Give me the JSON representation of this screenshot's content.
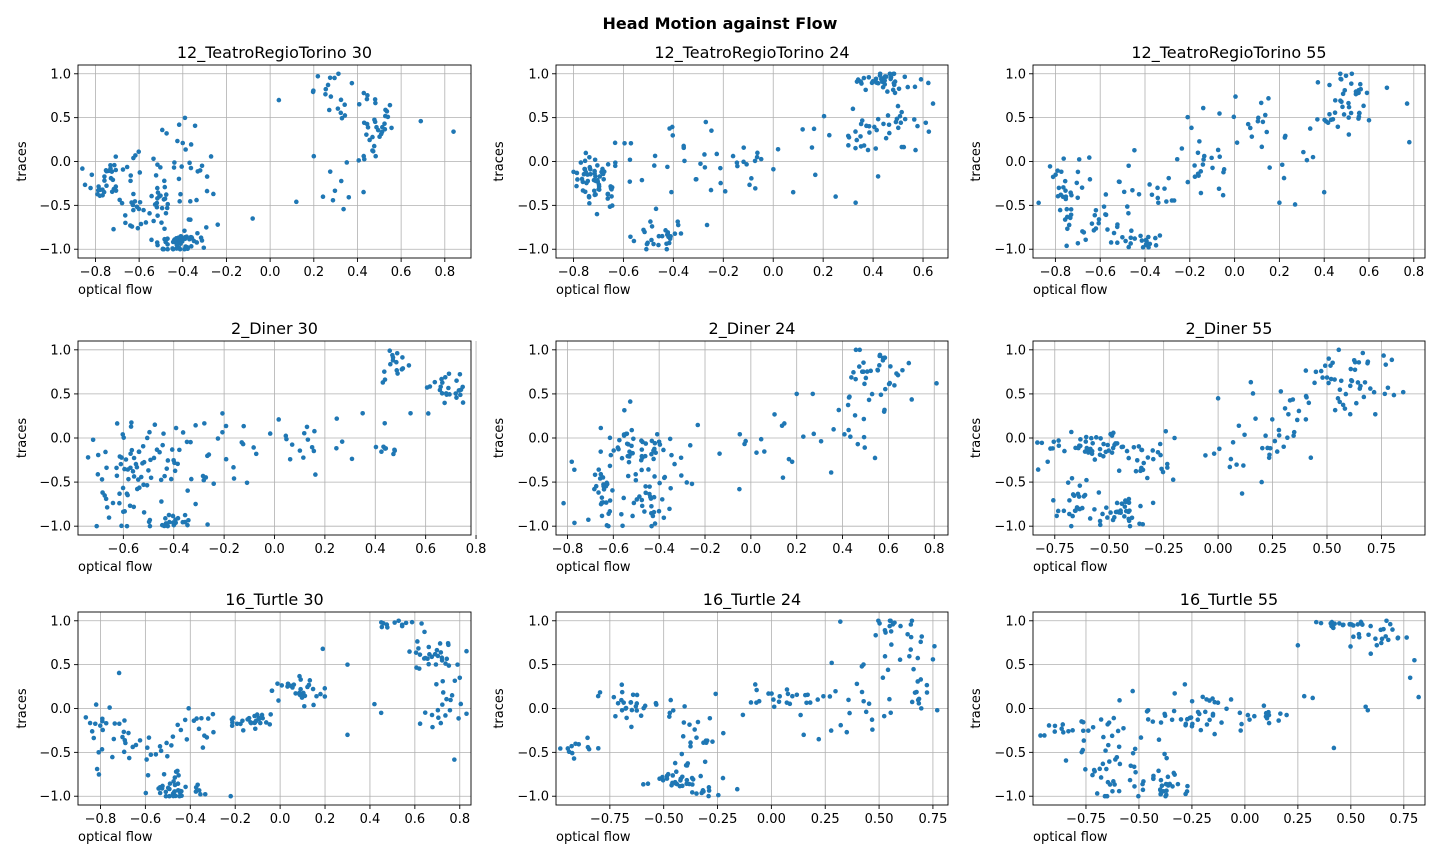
{
  "figure": {
    "suptitle": "Head Motion against Flow"
  },
  "chart_data": [
    {
      "type": "scatter",
      "title": "12_TeatroRegioTorino 30",
      "xlabel": "optical flow",
      "ylabel": "traces",
      "xlim": [
        -0.88,
        0.92
      ],
      "ylim": [
        -1.1,
        1.1
      ],
      "xticks": [
        -0.8,
        -0.6,
        -0.4,
        -0.2,
        0.0,
        0.2,
        0.4,
        0.6,
        0.8
      ],
      "yticks": [
        -1.0,
        -0.5,
        0.0,
        0.5,
        1.0
      ],
      "xtick_labels": [
        "−0.8",
        "−0.6",
        "−0.4",
        "−0.2",
        "0.0",
        "0.2",
        "0.4",
        "0.6",
        "0.8"
      ],
      "ytick_labels": [
        "−1.0",
        "−0.5",
        "0.0",
        "0.5",
        "1.0"
      ],
      "grid": true,
      "color": "#1f77b4",
      "clusters": [
        {
          "cx": -0.72,
          "cy": -0.2,
          "sx": 0.06,
          "sy": 0.2,
          "n": 45
        },
        {
          "cx": -0.5,
          "cy": -0.5,
          "sx": 0.08,
          "sy": 0.3,
          "n": 55
        },
        {
          "cx": -0.42,
          "cy": -0.92,
          "sx": 0.06,
          "sy": 0.06,
          "n": 45
        },
        {
          "cx": -0.4,
          "cy": 0.05,
          "sx": 0.08,
          "sy": 0.2,
          "n": 20
        },
        {
          "cx": 0.32,
          "cy": 0.8,
          "sx": 0.06,
          "sy": 0.12,
          "n": 20
        },
        {
          "cx": 0.5,
          "cy": 0.35,
          "sx": 0.05,
          "sy": 0.2,
          "n": 30
        },
        {
          "cx": 0.33,
          "cy": -0.2,
          "sx": 0.08,
          "sy": 0.15,
          "n": 12
        }
      ],
      "points": [
        [
          0.04,
          0.7
        ],
        [
          0.12,
          -0.46
        ],
        [
          0.69,
          0.46
        ],
        [
          0.84,
          0.34
        ],
        [
          -0.08,
          -0.65
        ],
        [
          -0.24,
          -0.72
        ],
        [
          -0.26,
          -0.37
        ],
        [
          0.2,
          0.06
        ]
      ]
    },
    {
      "type": "scatter",
      "title": "12_TeatroRegioTorino 24",
      "xlabel": "optical flow",
      "ylabel": "traces",
      "xlim": [
        -0.87,
        0.7
      ],
      "ylim": [
        -1.1,
        1.1
      ],
      "xticks": [
        -0.8,
        -0.6,
        -0.4,
        -0.2,
        0.0,
        0.2,
        0.4,
        0.6
      ],
      "yticks": [
        -1.0,
        -0.5,
        0.0,
        0.5,
        1.0
      ],
      "xtick_labels": [
        "−0.8",
        "−0.6",
        "−0.4",
        "−0.2",
        "0.0",
        "0.2",
        "0.4",
        "0.6"
      ],
      "ytick_labels": [
        "−1.0",
        "−0.5",
        "0.0",
        "0.5",
        "1.0"
      ],
      "grid": true,
      "color": "#1f77b4",
      "clusters": [
        {
          "cx": -0.72,
          "cy": -0.2,
          "sx": 0.04,
          "sy": 0.15,
          "n": 60
        },
        {
          "cx": -0.45,
          "cy": -0.85,
          "sx": 0.07,
          "sy": 0.12,
          "n": 30
        },
        {
          "cx": -0.45,
          "cy": 0.0,
          "sx": 0.12,
          "sy": 0.2,
          "n": 20
        },
        {
          "cx": -0.05,
          "cy": 0.0,
          "sx": 0.15,
          "sy": 0.15,
          "n": 25
        },
        {
          "cx": 0.45,
          "cy": 0.92,
          "sx": 0.07,
          "sy": 0.06,
          "n": 40
        },
        {
          "cx": 0.45,
          "cy": 0.45,
          "sx": 0.08,
          "sy": 0.2,
          "n": 30
        },
        {
          "cx": 0.35,
          "cy": 0.3,
          "sx": 0.1,
          "sy": 0.15,
          "n": 15
        }
      ],
      "points": [
        [
          0.64,
          0.66
        ],
        [
          0.25,
          -0.4
        ],
        [
          0.33,
          -0.47
        ],
        [
          0.42,
          -0.17
        ],
        [
          0.08,
          -0.35
        ],
        [
          -0.27,
          0.45
        ],
        [
          0.57,
          0.13
        ]
      ]
    },
    {
      "type": "scatter",
      "title": "12_TeatroRegioTorino 55",
      "xlabel": "optical flow",
      "ylabel": "traces",
      "xlim": [
        -0.9,
        0.85
      ],
      "ylim": [
        -1.1,
        1.1
      ],
      "xticks": [
        -0.8,
        -0.6,
        -0.4,
        -0.2,
        0.0,
        0.2,
        0.4,
        0.6,
        0.8
      ],
      "yticks": [
        -1.0,
        -0.5,
        0.0,
        0.5,
        1.0
      ],
      "xtick_labels": [
        "−0.8",
        "−0.6",
        "−0.4",
        "−0.2",
        "0.0",
        "0.2",
        "0.4",
        "0.6",
        "0.8"
      ],
      "ytick_labels": [
        "−1.0",
        "−0.5",
        "0.0",
        "0.5",
        "1.0"
      ],
      "grid": true,
      "color": "#1f77b4",
      "clusters": [
        {
          "cx": -0.75,
          "cy": -0.4,
          "sx": 0.04,
          "sy": 0.25,
          "n": 35
        },
        {
          "cx": -0.6,
          "cy": -0.75,
          "sx": 0.06,
          "sy": 0.15,
          "n": 20
        },
        {
          "cx": -0.42,
          "cy": -0.9,
          "sx": 0.05,
          "sy": 0.08,
          "n": 20
        },
        {
          "cx": -0.4,
          "cy": -0.3,
          "sx": 0.1,
          "sy": 0.3,
          "n": 20
        },
        {
          "cx": -0.15,
          "cy": -0.05,
          "sx": 0.08,
          "sy": 0.25,
          "n": 25
        },
        {
          "cx": 0.15,
          "cy": 0.35,
          "sx": 0.12,
          "sy": 0.25,
          "n": 25
        },
        {
          "cx": 0.48,
          "cy": 0.7,
          "sx": 0.06,
          "sy": 0.2,
          "n": 40
        }
      ],
      "points": [
        [
          0.78,
          0.22
        ],
        [
          0.77,
          0.66
        ],
        [
          0.68,
          0.84
        ],
        [
          0.6,
          0.47
        ],
        [
          0.35,
          0.05
        ],
        [
          0.2,
          -0.47
        ],
        [
          0.27,
          -0.49
        ],
        [
          0.4,
          -0.35
        ]
      ]
    },
    {
      "type": "scatter",
      "title": "2_Diner 30",
      "xlabel": "optical flow",
      "ylabel": "traces",
      "xlim": [
        -0.78,
        0.78
      ],
      "ylim": [
        -1.1,
        1.1
      ],
      "xticks": [
        -0.6,
        -0.4,
        -0.2,
        0.0,
        0.2,
        0.4,
        0.6,
        0.8
      ],
      "yticks": [
        -1.0,
        -0.5,
        0.0,
        0.5,
        1.0
      ],
      "xtick_labels": [
        "−0.6",
        "−0.4",
        "−0.2",
        "0.0",
        "0.2",
        "0.4",
        "0.6",
        "0.8"
      ],
      "ytick_labels": [
        "−1.0",
        "−0.5",
        "0.0",
        "0.5",
        "1.0"
      ],
      "grid": true,
      "color": "#1f77b4",
      "clusters": [
        {
          "cx": -0.62,
          "cy": -0.55,
          "sx": 0.05,
          "sy": 0.3,
          "n": 35
        },
        {
          "cx": -0.5,
          "cy": -0.35,
          "sx": 0.07,
          "sy": 0.3,
          "n": 50
        },
        {
          "cx": -0.4,
          "cy": -0.93,
          "sx": 0.04,
          "sy": 0.05,
          "n": 20
        },
        {
          "cx": -0.25,
          "cy": -0.2,
          "sx": 0.1,
          "sy": 0.25,
          "n": 25
        },
        {
          "cx": 0.15,
          "cy": -0.05,
          "sx": 0.15,
          "sy": 0.15,
          "n": 20
        },
        {
          "cx": 0.47,
          "cy": 0.85,
          "sx": 0.03,
          "sy": 0.1,
          "n": 15
        },
        {
          "cx": 0.68,
          "cy": 0.55,
          "sx": 0.05,
          "sy": 0.1,
          "n": 25
        },
        {
          "cx": 0.45,
          "cy": -0.12,
          "sx": 0.04,
          "sy": 0.03,
          "n": 8
        }
      ],
      "points": [
        [
          0.54,
          0.28
        ],
        [
          0.35,
          0.28
        ],
        [
          0.43,
          0.63
        ],
        [
          -0.72,
          -0.02
        ],
        [
          -0.74,
          -0.22
        ]
      ]
    },
    {
      "type": "scatter",
      "title": "2_Diner 24",
      "xlabel": "optical flow",
      "ylabel": "traces",
      "xlim": [
        -0.85,
        0.86
      ],
      "ylim": [
        -1.1,
        1.1
      ],
      "xticks": [
        -0.8,
        -0.6,
        -0.4,
        -0.2,
        0.0,
        0.2,
        0.4,
        0.6,
        0.8
      ],
      "yticks": [
        -1.0,
        -0.5,
        0.0,
        0.5,
        1.0
      ],
      "xtick_labels": [
        "−0.8",
        "−0.6",
        "−0.4",
        "−0.2",
        "0.0",
        "0.2",
        "0.4",
        "0.6",
        "0.8"
      ],
      "ytick_labels": [
        "−1.0",
        "−0.5",
        "0.0",
        "0.5",
        "1.0"
      ],
      "grid": true,
      "color": "#1f77b4",
      "clusters": [
        {
          "cx": -0.65,
          "cy": -0.6,
          "sx": 0.06,
          "sy": 0.25,
          "n": 35
        },
        {
          "cx": -0.5,
          "cy": -0.1,
          "sx": 0.08,
          "sy": 0.15,
          "n": 45
        },
        {
          "cx": -0.45,
          "cy": -0.7,
          "sx": 0.05,
          "sy": 0.2,
          "n": 30
        },
        {
          "cx": -0.3,
          "cy": -0.3,
          "sx": 0.07,
          "sy": 0.2,
          "n": 12
        },
        {
          "cx": 0.05,
          "cy": -0.05,
          "sx": 0.12,
          "sy": 0.2,
          "n": 15
        },
        {
          "cx": 0.45,
          "cy": 0.2,
          "sx": 0.05,
          "sy": 0.2,
          "n": 15
        },
        {
          "cx": 0.55,
          "cy": 0.75,
          "sx": 0.08,
          "sy": 0.2,
          "n": 35
        }
      ],
      "points": [
        [
          0.81,
          0.62
        ],
        [
          0.18,
          -0.27
        ],
        [
          0.14,
          -0.45
        ],
        [
          -0.05,
          -0.58
        ],
        [
          0.27,
          0.5
        ],
        [
          0.2,
          0.5
        ],
        [
          -0.77,
          -0.36
        ]
      ]
    },
    {
      "type": "scatter",
      "title": "2_Diner 55",
      "xlabel": "optical flow",
      "ylabel": "traces",
      "xlim": [
        -0.85,
        0.95
      ],
      "ylim": [
        -1.1,
        1.1
      ],
      "xticks": [
        -0.75,
        -0.5,
        -0.25,
        0.0,
        0.25,
        0.5,
        0.75
      ],
      "yticks": [
        -1.0,
        -0.5,
        0.0,
        0.5,
        1.0
      ],
      "xtick_labels": [
        "−0.75",
        "−0.50",
        "−0.25",
        "0.00",
        "0.25",
        "0.50",
        "0.75"
      ],
      "ytick_labels": [
        "−1.0",
        "−0.5",
        "0.0",
        "0.5",
        "1.0"
      ],
      "grid": true,
      "color": "#1f77b4",
      "clusters": [
        {
          "cx": -0.55,
          "cy": -0.1,
          "sx": 0.12,
          "sy": 0.08,
          "n": 50
        },
        {
          "cx": -0.65,
          "cy": -0.7,
          "sx": 0.05,
          "sy": 0.2,
          "n": 25
        },
        {
          "cx": -0.45,
          "cy": -0.85,
          "sx": 0.07,
          "sy": 0.12,
          "n": 35
        },
        {
          "cx": -0.3,
          "cy": -0.4,
          "sx": 0.07,
          "sy": 0.2,
          "n": 20
        },
        {
          "cx": 0.15,
          "cy": -0.1,
          "sx": 0.15,
          "sy": 0.15,
          "n": 20
        },
        {
          "cx": 0.35,
          "cy": 0.25,
          "sx": 0.1,
          "sy": 0.2,
          "n": 25
        },
        {
          "cx": 0.62,
          "cy": 0.65,
          "sx": 0.1,
          "sy": 0.2,
          "n": 45
        }
      ],
      "points": [
        [
          0.85,
          0.52
        ],
        [
          0.2,
          -0.5
        ],
        [
          0.11,
          -0.63
        ],
        [
          0.0,
          0.45
        ],
        [
          -0.77,
          -0.12
        ],
        [
          -0.2,
          0.0
        ]
      ]
    },
    {
      "type": "scatter",
      "title": "16_Turtle 30",
      "xlabel": "optical flow",
      "ylabel": "traces",
      "xlim": [
        -0.9,
        0.85
      ],
      "ylim": [
        -1.1,
        1.1
      ],
      "xticks": [
        -0.8,
        -0.6,
        -0.4,
        -0.2,
        0.0,
        0.2,
        0.4,
        0.6,
        0.8
      ],
      "yticks": [
        -1.0,
        -0.5,
        0.0,
        0.5,
        1.0
      ],
      "xtick_labels": [
        "−0.8",
        "−0.6",
        "−0.4",
        "−0.2",
        "0.0",
        "0.2",
        "0.4",
        "0.6",
        "0.8"
      ],
      "ytick_labels": [
        "−1.0",
        "−0.5",
        "0.0",
        "0.5",
        "1.0"
      ],
      "grid": true,
      "color": "#1f77b4",
      "clusters": [
        {
          "cx": -0.78,
          "cy": -0.3,
          "sx": 0.05,
          "sy": 0.25,
          "n": 25
        },
        {
          "cx": -0.62,
          "cy": -0.5,
          "sx": 0.06,
          "sy": 0.1,
          "n": 15
        },
        {
          "cx": -0.5,
          "cy": -0.85,
          "sx": 0.07,
          "sy": 0.08,
          "n": 20
        },
        {
          "cx": -0.42,
          "cy": -0.95,
          "sx": 0.05,
          "sy": 0.05,
          "n": 20
        },
        {
          "cx": -0.35,
          "cy": -0.2,
          "sx": 0.08,
          "sy": 0.1,
          "n": 20
        },
        {
          "cx": -0.15,
          "cy": -0.15,
          "sx": 0.07,
          "sy": 0.05,
          "n": 25
        },
        {
          "cx": 0.1,
          "cy": 0.2,
          "sx": 0.08,
          "sy": 0.08,
          "n": 30
        },
        {
          "cx": 0.5,
          "cy": 0.97,
          "sx": 0.06,
          "sy": 0.03,
          "n": 12
        },
        {
          "cx": 0.67,
          "cy": 0.65,
          "sx": 0.05,
          "sy": 0.15,
          "n": 30
        },
        {
          "cx": 0.72,
          "cy": 0.0,
          "sx": 0.05,
          "sy": 0.15,
          "n": 20
        }
      ],
      "points": [
        [
          0.8,
          0.35
        ],
        [
          0.79,
          0.5
        ],
        [
          0.42,
          0.05
        ],
        [
          0.45,
          -0.05
        ],
        [
          0.3,
          0.5
        ],
        [
          0.19,
          0.68
        ],
        [
          0.3,
          -0.3
        ],
        [
          -0.22,
          -1.0
        ]
      ]
    },
    {
      "type": "scatter",
      "title": "16_Turtle 24",
      "xlabel": "optical flow",
      "ylabel": "traces",
      "xlim": [
        -1.0,
        0.82
      ],
      "ylim": [
        -1.1,
        1.1
      ],
      "xticks": [
        -0.75,
        -0.5,
        -0.25,
        0.0,
        0.25,
        0.5,
        0.75
      ],
      "yticks": [
        -1.0,
        -0.5,
        0.0,
        0.5,
        1.0
      ],
      "xtick_labels": [
        "−0.75",
        "−0.50",
        "−0.25",
        "0.00",
        "0.25",
        "0.50",
        "0.75"
      ],
      "ytick_labels": [
        "−1.0",
        "−0.5",
        "0.0",
        "0.5",
        "1.0"
      ],
      "grid": true,
      "color": "#1f77b4",
      "clusters": [
        {
          "cx": -0.88,
          "cy": -0.45,
          "sx": 0.05,
          "sy": 0.05,
          "n": 12
        },
        {
          "cx": -0.65,
          "cy": 0.0,
          "sx": 0.08,
          "sy": 0.1,
          "n": 30
        },
        {
          "cx": -0.45,
          "cy": -0.82,
          "sx": 0.08,
          "sy": 0.05,
          "n": 25
        },
        {
          "cx": -0.35,
          "cy": -0.35,
          "sx": 0.07,
          "sy": 0.25,
          "n": 25
        },
        {
          "cx": -0.3,
          "cy": -0.97,
          "sx": 0.05,
          "sy": 0.03,
          "n": 12
        },
        {
          "cx": 0.05,
          "cy": 0.1,
          "sx": 0.12,
          "sy": 0.1,
          "n": 25
        },
        {
          "cx": 0.45,
          "cy": 0.0,
          "sx": 0.1,
          "sy": 0.2,
          "n": 20
        },
        {
          "cx": 0.6,
          "cy": 0.8,
          "sx": 0.08,
          "sy": 0.15,
          "n": 25
        },
        {
          "cx": 0.68,
          "cy": 0.15,
          "sx": 0.04,
          "sy": 0.15,
          "n": 12
        }
      ],
      "points": [
        [
          0.75,
          0.56
        ],
        [
          0.32,
          0.99
        ],
        [
          0.28,
          0.52
        ],
        [
          0.42,
          0.48
        ],
        [
          0.15,
          -0.3
        ],
        [
          0.35,
          -0.27
        ],
        [
          0.22,
          -0.35
        ],
        [
          0.77,
          -0.02
        ]
      ]
    },
    {
      "type": "scatter",
      "title": "16_Turtle 55",
      "xlabel": "optical flow",
      "ylabel": "traces",
      "xlim": [
        -1.0,
        0.85
      ],
      "ylim": [
        -1.1,
        1.1
      ],
      "xticks": [
        -0.75,
        -0.5,
        -0.25,
        0.0,
        0.25,
        0.5,
        0.75
      ],
      "yticks": [
        -1.0,
        -0.5,
        0.0,
        0.5,
        1.0
      ],
      "xtick_labels": [
        "−0.75",
        "−0.50",
        "−0.25",
        "0.00",
        "0.25",
        "0.50",
        "0.75"
      ],
      "ytick_labels": [
        "−1.0",
        "−0.5",
        "0.0",
        "0.5",
        "1.0"
      ],
      "grid": true,
      "color": "#1f77b4",
      "clusters": [
        {
          "cx": -0.85,
          "cy": -0.25,
          "sx": 0.06,
          "sy": 0.05,
          "n": 15
        },
        {
          "cx": -0.68,
          "cy": -0.7,
          "sx": 0.05,
          "sy": 0.25,
          "n": 30
        },
        {
          "cx": -0.5,
          "cy": -0.4,
          "sx": 0.08,
          "sy": 0.3,
          "n": 30
        },
        {
          "cx": -0.35,
          "cy": -0.9,
          "sx": 0.06,
          "sy": 0.08,
          "n": 25
        },
        {
          "cx": -0.2,
          "cy": -0.05,
          "sx": 0.1,
          "sy": 0.1,
          "n": 35
        },
        {
          "cx": 0.1,
          "cy": -0.05,
          "sx": 0.08,
          "sy": 0.08,
          "n": 15
        },
        {
          "cx": 0.45,
          "cy": 0.96,
          "sx": 0.07,
          "sy": 0.02,
          "n": 20
        },
        {
          "cx": 0.65,
          "cy": 0.8,
          "sx": 0.06,
          "sy": 0.1,
          "n": 20
        }
      ],
      "points": [
        [
          0.78,
          0.35
        ],
        [
          0.8,
          0.55
        ],
        [
          0.82,
          0.13
        ],
        [
          0.28,
          0.14
        ],
        [
          0.32,
          0.12
        ],
        [
          0.42,
          -0.45
        ],
        [
          0.58,
          -0.02
        ],
        [
          0.25,
          0.72
        ],
        [
          0.57,
          0.02
        ]
      ]
    }
  ]
}
